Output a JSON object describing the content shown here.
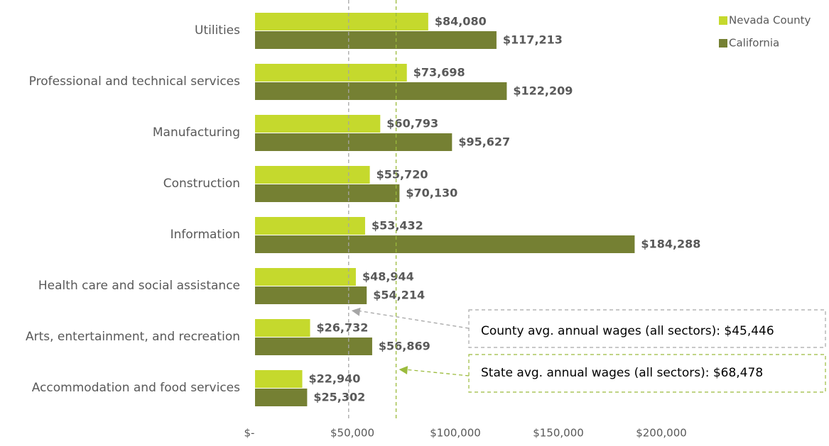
{
  "chart_data": {
    "type": "hbar",
    "categories": [
      "Utilities",
      "Professional and technical services",
      "Manufacturing",
      "Construction",
      "Information",
      "Health care and social assistance",
      "Arts, entertainment, and recreation",
      "Accommodation and food services"
    ],
    "series": [
      {
        "name": "Nevada County",
        "color": "#c5d92d",
        "values": [
          84080,
          73698,
          60793,
          55720,
          53432,
          48944,
          26732,
          22940
        ],
        "value_labels": [
          "$84,080",
          "$73,698",
          "$60,793",
          "$55,720",
          "$53,432",
          "$48,944",
          "$26,732",
          "$22,940"
        ]
      },
      {
        "name": "California",
        "color": "#758033",
        "values": [
          117213,
          122209,
          95627,
          70130,
          184288,
          54214,
          56869,
          25302
        ],
        "value_labels": [
          "$117,213",
          "$122,209",
          "$95,627",
          "$70,130",
          "$184,288",
          "$54,214",
          "$56,869",
          "$25,302"
        ]
      }
    ],
    "xlim": [
      0,
      250000
    ],
    "xticks": [
      {
        "value": 0,
        "label": "$-"
      },
      {
        "value": 50000,
        "label": "$50,000"
      },
      {
        "value": 100000,
        "label": "$100,000"
      },
      {
        "value": 150000,
        "label": "$150,000"
      },
      {
        "value": 200000,
        "label": "$200,000"
      }
    ],
    "legend": "top-right",
    "annotations": [
      {
        "text": "County avg. annual wages (all sectors): $45,446",
        "value": 45446,
        "color": "#a6a6a6"
      },
      {
        "text": "State avg. annual wages (all sectors): $68,478",
        "value": 68478,
        "color": "#9bbb3c"
      }
    ]
  }
}
